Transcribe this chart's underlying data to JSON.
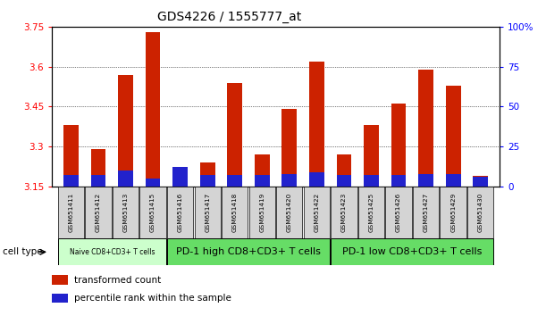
{
  "title": "GDS4226 / 1555777_at",
  "samples": [
    "GSM651411",
    "GSM651412",
    "GSM651413",
    "GSM651415",
    "GSM651416",
    "GSM651417",
    "GSM651418",
    "GSM651419",
    "GSM651420",
    "GSM651422",
    "GSM651423",
    "GSM651425",
    "GSM651426",
    "GSM651427",
    "GSM651429",
    "GSM651430"
  ],
  "transformed_count": [
    3.38,
    3.29,
    3.57,
    3.73,
    3.2,
    3.24,
    3.54,
    3.27,
    3.44,
    3.62,
    3.27,
    3.38,
    3.46,
    3.59,
    3.53,
    3.19
  ],
  "percentile_rank": [
    7,
    7,
    10,
    5,
    12,
    7,
    7,
    7,
    8,
    9,
    7,
    7,
    7,
    8,
    8,
    6
  ],
  "ymin": 3.15,
  "ymax": 3.75,
  "yticks_left": [
    3.15,
    3.3,
    3.45,
    3.6,
    3.75
  ],
  "yticks_right": [
    0,
    25,
    50,
    75,
    100
  ],
  "bar_color_red": "#cc2200",
  "bar_color_blue": "#2222cc",
  "cell_type_groups": [
    {
      "label": "Naive CD8+CD3+ T cells",
      "start": 0,
      "end": 3,
      "color": "#ccffcc"
    },
    {
      "label": "PD-1 high CD8+CD3+ T cells",
      "start": 4,
      "end": 9,
      "color": "#66dd66"
    },
    {
      "label": "PD-1 low CD8+CD3+ T cells",
      "start": 10,
      "end": 15,
      "color": "#66dd66"
    }
  ],
  "legend_labels": [
    "transformed count",
    "percentile rank within the sample"
  ],
  "plot_bg": "#ffffff"
}
